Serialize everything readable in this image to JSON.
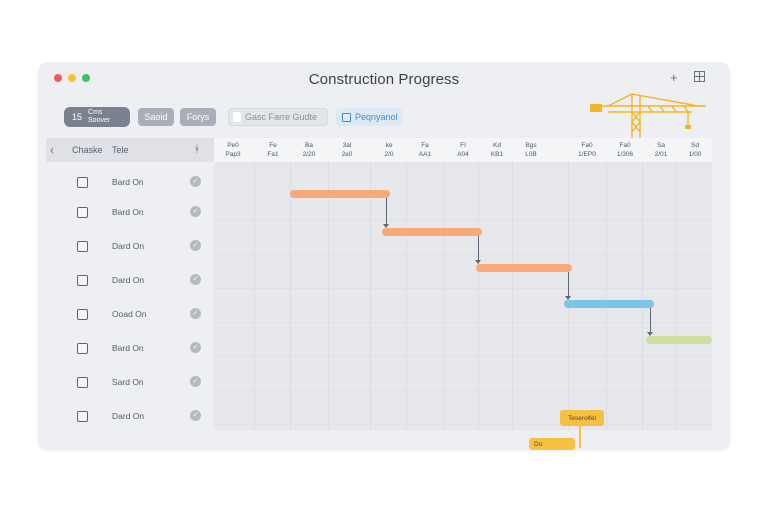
{
  "window": {
    "title": "Construction Progress"
  },
  "toolbar": {
    "primary_line1": "Cms",
    "primary_line2": "Soover",
    "primary_icon_glyph": "15",
    "save_label": "Saoid",
    "forge_label": "Forys",
    "light_label": "Gasc Farre Gudte",
    "blue_label": "Peqnyanol"
  },
  "table": {
    "header_col1": "Chaske",
    "header_col2": "Tele",
    "header_col3": "ᚼ",
    "rows": [
      {
        "label": "Bard On"
      },
      {
        "label": "Bard On"
      },
      {
        "label": "Dard On"
      },
      {
        "label": "Dard On"
      },
      {
        "label": "Ooad On"
      },
      {
        "label": "Bard On"
      },
      {
        "label": "Sard On"
      },
      {
        "label": "Dard On"
      }
    ]
  },
  "timeline": {
    "ticks": [
      {
        "top": "Pe0",
        "bottom": "Pap3"
      },
      {
        "top": "Fe",
        "bottom": "Fa1"
      },
      {
        "top": "Ba",
        "bottom": "2/20"
      },
      {
        "top": "3al",
        "bottom": "2e0"
      },
      {
        "top": "ke",
        "bottom": "2/0"
      },
      {
        "top": "Fa",
        "bottom": "AA1"
      },
      {
        "top": "FI",
        "bottom": "A04"
      },
      {
        "top": "Kd",
        "bottom": "KB1"
      },
      {
        "top": "Bgs",
        "bottom": "L0B"
      },
      {
        "top": "Fa0",
        "bottom": "1/EP0"
      },
      {
        "top": "Fa0",
        "bottom": "1/306"
      },
      {
        "top": "Sa",
        "bottom": "2/01"
      },
      {
        "top": "Sd",
        "bottom": "1/00"
      }
    ],
    "tasks": [
      {
        "color": "#f9a87a"
      },
      {
        "color": "#f9a87a"
      },
      {
        "color": "#f9a87a"
      },
      {
        "color": "#7cc4ea"
      },
      {
        "color": "#cfdf9e"
      }
    ],
    "milestone_label": "Teserolfel",
    "milestone2_label": "Do"
  },
  "colors": {
    "accent_orange": "#f9a87a",
    "accent_blue": "#7cc4ea",
    "accent_green": "#cfdf9e",
    "accent_yellow": "#f6c142"
  },
  "icons": {
    "add": "plus-icon",
    "grid": "grid-icon",
    "back": "chevron-left-icon",
    "crane": "crane-icon"
  }
}
